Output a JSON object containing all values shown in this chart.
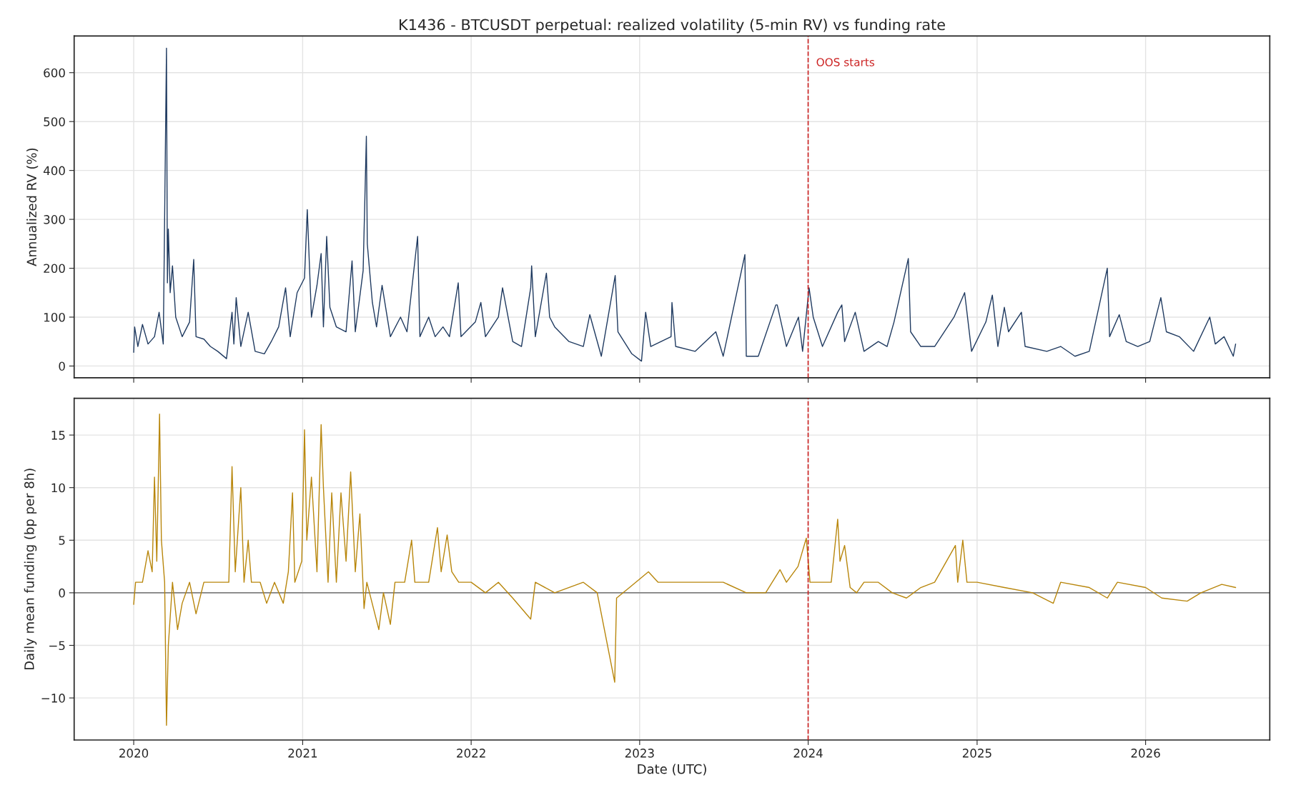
{
  "chart_data": [
    {
      "type": "line",
      "title": "K1436 - BTCUSDT perpetual: realized volatility (5-min RV) vs funding rate",
      "ylabel": "Annualized RV (%)",
      "tick_labels": "y",
      "grid": true,
      "xlim": [
        "2019-08-25",
        "2026-09-27"
      ],
      "xticks": [
        {
          "value": "2020-01-01",
          "label": null
        },
        {
          "value": "2021-01-01",
          "label": null
        },
        {
          "value": "2022-01-01",
          "label": null
        },
        {
          "value": "2023-01-01",
          "label": null
        },
        {
          "value": "2024-01-01",
          "label": null
        },
        {
          "value": "2025-01-01",
          "label": null
        },
        {
          "value": "2026-01-01",
          "label": null
        }
      ],
      "ylim": [
        -24,
        675
      ],
      "yticks": [
        0,
        100,
        200,
        300,
        400,
        500,
        600
      ],
      "ref_lines": [
        {
          "axis": "x",
          "value": "2024-01-01",
          "label": "OOS starts",
          "color": "#cc2222",
          "line_style": "dashed"
        }
      ],
      "series": [
        {
          "color": "#1f3a60",
          "x": [
            "2020-01-01",
            "2020-01-03",
            "2020-01-10",
            "2020-01-20",
            "2020-02-01",
            "2020-02-15",
            "2020-02-25",
            "2020-03-05",
            "2020-03-12",
            "2020-03-14",
            "2020-03-16",
            "2020-03-20",
            "2020-03-25",
            "2020-04-01",
            "2020-04-15",
            "2020-05-01",
            "2020-05-10",
            "2020-05-15",
            "2020-06-01",
            "2020-06-15",
            "2020-07-01",
            "2020-07-20",
            "2020-08-01",
            "2020-08-05",
            "2020-08-10",
            "2020-08-20",
            "2020-09-05",
            "2020-09-20",
            "2020-10-10",
            "2020-10-25",
            "2020-11-10",
            "2020-11-25",
            "2020-12-05",
            "2020-12-20",
            "2021-01-05",
            "2021-01-11",
            "2021-01-20",
            "2021-02-01",
            "2021-02-10",
            "2021-02-15",
            "2021-02-22",
            "2021-03-01",
            "2021-03-15",
            "2021-04-05",
            "2021-04-18",
            "2021-04-25",
            "2021-05-12",
            "2021-05-19",
            "2021-05-21",
            "2021-06-01",
            "2021-06-10",
            "2021-06-22",
            "2021-07-10",
            "2021-08-01",
            "2021-08-15",
            "2021-09-07",
            "2021-09-12",
            "2021-10-01",
            "2021-10-15",
            "2021-11-01",
            "2021-11-15",
            "2021-12-04",
            "2021-12-10",
            "2022-01-10",
            "2022-01-22",
            "2022-02-01",
            "2022-03-01",
            "2022-03-10",
            "2022-04-01",
            "2022-04-20",
            "2022-05-10",
            "2022-05-12",
            "2022-05-20",
            "2022-06-13",
            "2022-06-20",
            "2022-07-01",
            "2022-08-01",
            "2022-09-01",
            "2022-09-15",
            "2022-10-10",
            "2022-11-09",
            "2022-11-15",
            "2022-12-15",
            "2023-01-05",
            "2023-01-14",
            "2023-01-25",
            "2023-03-10",
            "2023-03-12",
            "2023-03-20",
            "2023-05-01",
            "2023-06-15",
            "2023-07-01",
            "2023-08-17",
            "2023-08-20",
            "2023-09-15",
            "2023-10-23",
            "2023-10-26",
            "2023-11-15",
            "2023-12-11",
            "2023-12-20",
            "2024-01-03",
            "2024-01-12",
            "2024-02-01",
            "2024-03-05",
            "2024-03-14",
            "2024-03-20",
            "2024-04-12",
            "2024-05-01",
            "2024-06-01",
            "2024-06-20",
            "2024-07-05",
            "2024-08-05",
            "2024-08-10",
            "2024-09-01",
            "2024-10-01",
            "2024-11-12",
            "2024-12-05",
            "2024-12-20",
            "2025-01-20",
            "2025-02-03",
            "2025-02-15",
            "2025-03-01",
            "2025-03-10",
            "2025-04-07",
            "2025-04-15",
            "2025-06-01",
            "2025-07-01",
            "2025-08-01",
            "2025-09-01",
            "2025-10-10",
            "2025-10-15",
            "2025-11-05",
            "2025-11-20",
            "2025-12-15",
            "2026-01-10",
            "2026-02-03",
            "2026-02-15",
            "2026-03-15",
            "2026-04-15",
            "2026-05-20",
            "2026-06-01",
            "2026-06-20",
            "2026-07-10",
            "2026-07-15"
          ],
          "values": [
            28,
            80,
            40,
            85,
            45,
            60,
            110,
            45,
            650,
            170,
            280,
            150,
            205,
            100,
            60,
            90,
            218,
            60,
            55,
            40,
            30,
            15,
            110,
            45,
            140,
            40,
            110,
            30,
            25,
            50,
            80,
            160,
            60,
            150,
            180,
            320,
            100,
            165,
            230,
            80,
            265,
            120,
            80,
            70,
            215,
            70,
            195,
            470,
            250,
            130,
            80,
            165,
            60,
            100,
            70,
            265,
            60,
            100,
            60,
            80,
            60,
            170,
            60,
            90,
            130,
            60,
            100,
            160,
            50,
            40,
            160,
            205,
            60,
            190,
            100,
            80,
            50,
            40,
            105,
            20,
            185,
            70,
            25,
            10,
            110,
            40,
            60,
            130,
            40,
            30,
            70,
            20,
            228,
            20,
            20,
            125,
            125,
            40,
            100,
            30,
            160,
            100,
            40,
            110,
            125,
            50,
            110,
            30,
            50,
            40,
            90,
            220,
            70,
            40,
            40,
            100,
            150,
            30,
            90,
            145,
            40,
            120,
            70,
            110,
            40,
            30,
            40,
            20,
            30,
            200,
            60,
            105,
            50,
            40,
            50,
            140,
            70,
            60,
            30,
            100,
            45,
            60,
            20,
            45
          ]
        }
      ]
    },
    {
      "type": "line",
      "xlabel": "Date (UTC)",
      "ylabel": "Daily mean funding (bp per 8h)",
      "grid": true,
      "xlim": [
        "2019-08-25",
        "2026-09-27"
      ],
      "xticks": [
        {
          "value": "2020-01-01",
          "label": "2020"
        },
        {
          "value": "2021-01-01",
          "label": "2021"
        },
        {
          "value": "2022-01-01",
          "label": "2022"
        },
        {
          "value": "2023-01-01",
          "label": "2023"
        },
        {
          "value": "2024-01-01",
          "label": "2024"
        },
        {
          "value": "2025-01-01",
          "label": "2025"
        },
        {
          "value": "2026-01-01",
          "label": "2026"
        }
      ],
      "ylim": [
        -14,
        18.5
      ],
      "yticks": [
        {
          "value": -10,
          "label": "−10"
        },
        {
          "value": -5,
          "label": "−5"
        },
        0,
        5,
        10,
        15
      ],
      "ref_lines": [
        {
          "axis": "x",
          "value": "2024-01-01",
          "color": "#cc2222",
          "line_style": "dashed"
        },
        {
          "axis": "y",
          "value": 0,
          "color": "#808080",
          "line_style": "solid"
        }
      ],
      "series": [
        {
          "color": "#b8860b",
          "x": [
            "2020-01-01",
            "2020-01-05",
            "2020-01-20",
            "2020-02-01",
            "2020-02-10",
            "2020-02-15",
            "2020-02-20",
            "2020-02-26",
            "2020-03-01",
            "2020-03-08",
            "2020-03-12",
            "2020-03-16",
            "2020-03-25",
            "2020-04-05",
            "2020-04-15",
            "2020-05-01",
            "2020-05-15",
            "2020-06-01",
            "2020-06-15",
            "2020-07-01",
            "2020-07-25",
            "2020-08-01",
            "2020-08-08",
            "2020-08-20",
            "2020-08-27",
            "2020-09-05",
            "2020-09-12",
            "2020-10-01",
            "2020-10-15",
            "2020-11-01",
            "2020-11-20",
            "2020-12-01",
            "2020-12-10",
            "2020-12-15",
            "2020-12-30",
            "2021-01-05",
            "2021-01-10",
            "2021-01-20",
            "2021-02-01",
            "2021-02-10",
            "2021-02-15",
            "2021-02-25",
            "2021-03-05",
            "2021-03-15",
            "2021-03-25",
            "2021-04-05",
            "2021-04-15",
            "2021-04-25",
            "2021-05-05",
            "2021-05-14",
            "2021-05-20",
            "2021-06-15",
            "2021-06-25",
            "2021-07-10",
            "2021-07-20",
            "2021-08-10",
            "2021-08-25",
            "2021-09-01",
            "2021-10-01",
            "2021-10-20",
            "2021-10-28",
            "2021-11-10",
            "2021-11-20",
            "2021-12-05",
            "2022-01-01",
            "2022-02-01",
            "2022-03-01",
            "2022-04-01",
            "2022-05-10",
            "2022-05-20",
            "2022-07-01",
            "2022-09-01",
            "2022-10-01",
            "2022-11-08",
            "2022-11-12",
            "2022-12-10",
            "2023-01-20",
            "2023-02-10",
            "2023-04-01",
            "2023-06-01",
            "2023-07-01",
            "2023-08-20",
            "2023-10-01",
            "2023-11-01",
            "2023-11-15",
            "2023-12-10",
            "2023-12-28",
            "2024-01-05",
            "2024-02-01",
            "2024-02-20",
            "2024-03-05",
            "2024-03-10",
            "2024-03-20",
            "2024-04-01",
            "2024-04-15",
            "2024-05-01",
            "2024-06-01",
            "2024-07-01",
            "2024-08-01",
            "2024-09-01",
            "2024-10-01",
            "2024-11-15",
            "2024-11-20",
            "2024-12-01",
            "2024-12-10",
            "2025-01-01",
            "2025-03-01",
            "2025-05-01",
            "2025-06-15",
            "2025-07-01",
            "2025-09-01",
            "2025-10-10",
            "2025-11-01",
            "2026-01-01",
            "2026-02-05",
            "2026-04-01",
            "2026-05-01",
            "2026-06-15",
            "2026-07-15"
          ],
          "values": [
            -1.1,
            1.0,
            1.0,
            4.0,
            2.0,
            11,
            3,
            17,
            5,
            1,
            -12.6,
            -5,
            1,
            -3.5,
            -1,
            1,
            -2,
            1,
            1,
            1,
            1,
            12,
            2,
            10,
            1,
            5,
            1,
            1,
            -1,
            1,
            -1,
            2,
            9.5,
            1,
            3,
            15.5,
            5,
            11,
            2,
            16,
            10,
            1,
            9.5,
            1,
            9.5,
            3,
            11.5,
            2,
            7.5,
            -1.5,
            1,
            -3.5,
            0,
            -3,
            1,
            1,
            5,
            1,
            1,
            6.2,
            2,
            5.5,
            2,
            1,
            1,
            0,
            1,
            -0.5,
            -2.5,
            1,
            0,
            1,
            0,
            -8.5,
            -0.5,
            0.5,
            2,
            1,
            1,
            1,
            1,
            0,
            0,
            2.2,
            1,
            2.5,
            5.2,
            1,
            1,
            1,
            7,
            3,
            4.5,
            0.5,
            0,
            1,
            1,
            0,
            -0.5,
            0.5,
            1,
            4.5,
            1,
            5,
            1,
            1,
            0.5,
            0,
            -1,
            1,
            0.5,
            -0.5,
            1,
            0.5,
            -0.5,
            -0.8,
            0,
            0.8,
            0.5
          ]
        }
      ]
    }
  ]
}
